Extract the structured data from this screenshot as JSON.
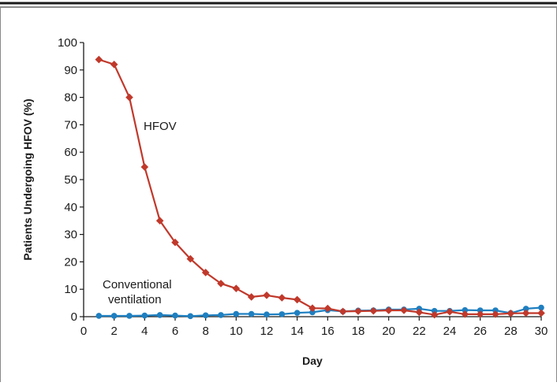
{
  "chart_data": {
    "type": "line",
    "title": "",
    "xlabel": "Day",
    "ylabel": "Patients Undergoing HFOV (%)",
    "xlim": [
      0,
      30
    ],
    "ylim": [
      0,
      100
    ],
    "xticks": [
      0,
      2,
      4,
      6,
      8,
      10,
      12,
      14,
      16,
      18,
      20,
      22,
      24,
      26,
      28,
      30
    ],
    "yticks": [
      0,
      10,
      20,
      30,
      40,
      50,
      60,
      70,
      80,
      90,
      100
    ],
    "grid": false,
    "legend": "none",
    "annotations": [
      {
        "text": "HFOV",
        "series": "HFOV"
      },
      {
        "text": "Conventional",
        "series": "Conventional ventilation"
      },
      {
        "text": "ventilation",
        "series": "Conventional ventilation"
      }
    ],
    "series": [
      {
        "name": "HFOV",
        "color": "#c0392b",
        "marker": "diamond",
        "x": [
          1,
          2,
          3,
          4,
          5,
          6,
          7,
          8,
          9,
          10,
          11,
          12,
          13,
          14,
          15,
          16,
          17,
          18,
          19,
          20,
          21,
          22,
          23,
          24,
          25,
          26,
          27,
          28,
          29,
          30
        ],
        "values": [
          93.8,
          92,
          80,
          54.6,
          35,
          27.1,
          21.1,
          16.1,
          12.1,
          10.3,
          7.2,
          7.8,
          6.9,
          6.2,
          3.1,
          3.0,
          1.9,
          2.0,
          2.1,
          2.3,
          2.3,
          1.6,
          0.7,
          1.8,
          0.9,
          0.9,
          0.9,
          1.2,
          1.3,
          1.3
        ]
      },
      {
        "name": "Conventional ventilation",
        "color": "#1e7fc0",
        "marker": "circle",
        "x": [
          1,
          2,
          3,
          4,
          5,
          6,
          7,
          8,
          9,
          10,
          11,
          12,
          13,
          14,
          15,
          16,
          17,
          18,
          19,
          20,
          21,
          22,
          23,
          24,
          25,
          26,
          27,
          28,
          29,
          30
        ],
        "values": [
          0.3,
          0.3,
          0.3,
          0.4,
          0.6,
          0.4,
          0.2,
          0.5,
          0.6,
          1.0,
          1.0,
          0.8,
          0.9,
          1.4,
          1.6,
          2.4,
          1.9,
          2.2,
          2.3,
          2.6,
          2.6,
          2.9,
          2.1,
          2.1,
          2.4,
          2.3,
          2.3,
          1.3,
          2.9,
          3.3
        ]
      }
    ]
  }
}
